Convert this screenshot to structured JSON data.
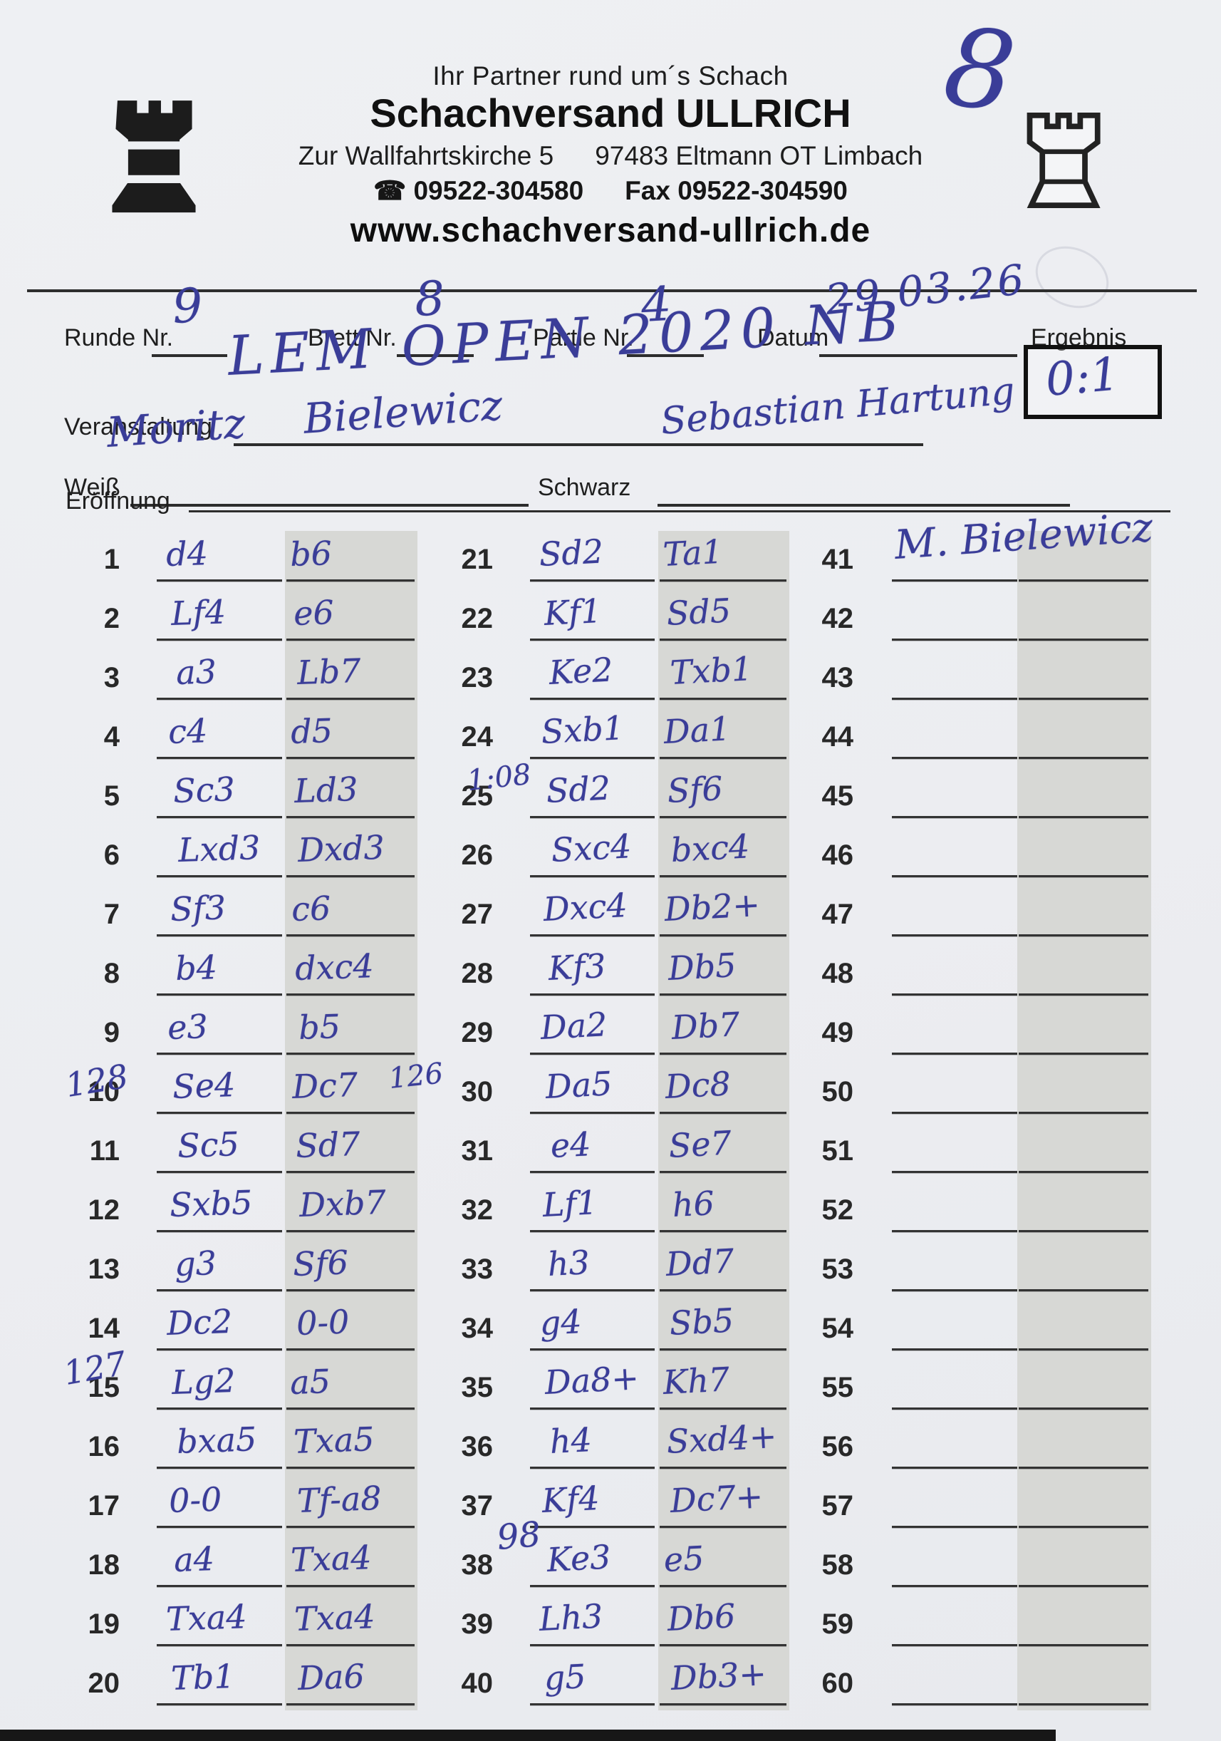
{
  "header": {
    "tagline": "Ihr Partner rund um´s Schach",
    "company": "Schachversand ULLRICH",
    "address_left": "Zur Wallfahrtskirche 5",
    "address_right": "97483 Eltmann OT Limbach",
    "phone_icon": "phone-icon",
    "phone": "09522-304580",
    "fax_label": "Fax",
    "fax": "09522-304590",
    "website": "www.schachversand-ullrich.de",
    "handwritten_corner_number": "8"
  },
  "fields": {
    "runde": {
      "label": "Runde Nr.",
      "value": "9"
    },
    "brett": {
      "label": "Brett Nr.",
      "value": "8"
    },
    "partie": {
      "label": "Partie Nr.",
      "value": "4"
    },
    "datum": {
      "label": "Datum",
      "value": "29.03.26"
    },
    "ergebnis": {
      "label": "Ergebnis",
      "value": "0:1"
    },
    "veranstaltung": {
      "label": "Veranstaltung",
      "value": "LEM OPEN 2020 NB"
    },
    "weiss": {
      "label": "Weiß",
      "value": "Moritz Bielewicz"
    },
    "schwarz": {
      "label": "Schwarz",
      "value": "Sebastian Hartung"
    },
    "eroeffnung": {
      "label": "Eröffnung",
      "value": ""
    }
  },
  "colors": {
    "ink_blue": "#3a3d98",
    "paper": "#edeff2",
    "shaded_column": "#d7d8d5"
  },
  "moves": {
    "columns": [
      {
        "rows": [
          {
            "n": "1",
            "w": "d4",
            "b": "b6"
          },
          {
            "n": "2",
            "w": "Lf4",
            "b": "e6"
          },
          {
            "n": "3",
            "w": "a3",
            "b": "Lb7"
          },
          {
            "n": "4",
            "w": "c4",
            "b": "d5"
          },
          {
            "n": "5",
            "w": "Sc3",
            "b": "Ld3"
          },
          {
            "n": "6",
            "w": "Lxd3",
            "b": "Dxd3"
          },
          {
            "n": "7",
            "w": "Sf3",
            "b": "c6"
          },
          {
            "n": "8",
            "w": "b4",
            "b": "dxc4"
          },
          {
            "n": "9",
            "w": "e3",
            "b": "b5"
          },
          {
            "n": "10",
            "w": "Se4",
            "b": "Dc7"
          },
          {
            "n": "11",
            "w": "Sc5",
            "b": "Sd7"
          },
          {
            "n": "12",
            "w": "Sxb5",
            "b": "Dxb7"
          },
          {
            "n": "13",
            "w": "g3",
            "b": "Sf6"
          },
          {
            "n": "14",
            "w": "Dc2",
            "b": "0-0"
          },
          {
            "n": "15",
            "w": "Lg2",
            "b": "a5"
          },
          {
            "n": "16",
            "w": "bxa5",
            "b": "Txa5"
          },
          {
            "n": "17",
            "w": "0-0",
            "b": "Tf-a8"
          },
          {
            "n": "18",
            "w": "a4",
            "b": "Txa4"
          },
          {
            "n": "19",
            "w": "Txa4",
            "b": "Txa4"
          },
          {
            "n": "20",
            "w": "Tb1",
            "b": "Da6"
          }
        ]
      },
      {
        "rows": [
          {
            "n": "21",
            "w": "Sd2",
            "b": "Ta1"
          },
          {
            "n": "22",
            "w": "Kf1",
            "b": "Sd5"
          },
          {
            "n": "23",
            "w": "Ke2",
            "b": "Txb1"
          },
          {
            "n": "24",
            "w": "Sxb1",
            "b": "Da1"
          },
          {
            "n": "25",
            "w": "Sd2",
            "b": "Sf6"
          },
          {
            "n": "26",
            "w": "Sxc4",
            "b": "bxc4"
          },
          {
            "n": "27",
            "w": "Dxc4",
            "b": "Db2+"
          },
          {
            "n": "28",
            "w": "Kf3",
            "b": "Db5"
          },
          {
            "n": "29",
            "w": "Da2",
            "b": "Db7"
          },
          {
            "n": "30",
            "w": "Da5",
            "b": "Dc8"
          },
          {
            "n": "31",
            "w": "e4",
            "b": "Se7"
          },
          {
            "n": "32",
            "w": "Lf1",
            "b": "h6"
          },
          {
            "n": "33",
            "w": "h3",
            "b": "Dd7"
          },
          {
            "n": "34",
            "w": "g4",
            "b": "Sb5"
          },
          {
            "n": "35",
            "w": "Da8+",
            "b": "Kh7"
          },
          {
            "n": "36",
            "w": "h4",
            "b": "Sxd4+"
          },
          {
            "n": "37",
            "w": "Kf4",
            "b": "Dc7+"
          },
          {
            "n": "38",
            "w": "Ke3",
            "b": "e5"
          },
          {
            "n": "39",
            "w": "Lh3",
            "b": "Db6"
          },
          {
            "n": "40",
            "w": "g5",
            "b": "Db3+"
          }
        ]
      },
      {
        "rows": [
          {
            "n": "41",
            "w": "",
            "b": ""
          },
          {
            "n": "42",
            "w": "",
            "b": ""
          },
          {
            "n": "43",
            "w": "",
            "b": ""
          },
          {
            "n": "44",
            "w": "",
            "b": ""
          },
          {
            "n": "45",
            "w": "",
            "b": ""
          },
          {
            "n": "46",
            "w": "",
            "b": ""
          },
          {
            "n": "47",
            "w": "",
            "b": ""
          },
          {
            "n": "48",
            "w": "",
            "b": ""
          },
          {
            "n": "49",
            "w": "",
            "b": ""
          },
          {
            "n": "50",
            "w": "",
            "b": ""
          },
          {
            "n": "51",
            "w": "",
            "b": ""
          },
          {
            "n": "52",
            "w": "",
            "b": ""
          },
          {
            "n": "53",
            "w": "",
            "b": ""
          },
          {
            "n": "54",
            "w": "",
            "b": ""
          },
          {
            "n": "55",
            "w": "",
            "b": ""
          },
          {
            "n": "56",
            "w": "",
            "b": ""
          },
          {
            "n": "57",
            "w": "",
            "b": ""
          },
          {
            "n": "58",
            "w": "",
            "b": ""
          },
          {
            "n": "59",
            "w": "",
            "b": ""
          },
          {
            "n": "60",
            "w": "",
            "b": ""
          }
        ]
      }
    ]
  },
  "clock_annotations": [
    {
      "text": "128",
      "location": "left of move 10"
    },
    {
      "text": "126",
      "location": "right of move 10 black"
    },
    {
      "text": "127",
      "location": "left of move 15"
    },
    {
      "text": "1:08",
      "location": "left of move 25"
    },
    {
      "text": "98",
      "location": "left of move 38"
    }
  ],
  "signature": {
    "text": "M. Bielewicz",
    "location": "row 41"
  }
}
